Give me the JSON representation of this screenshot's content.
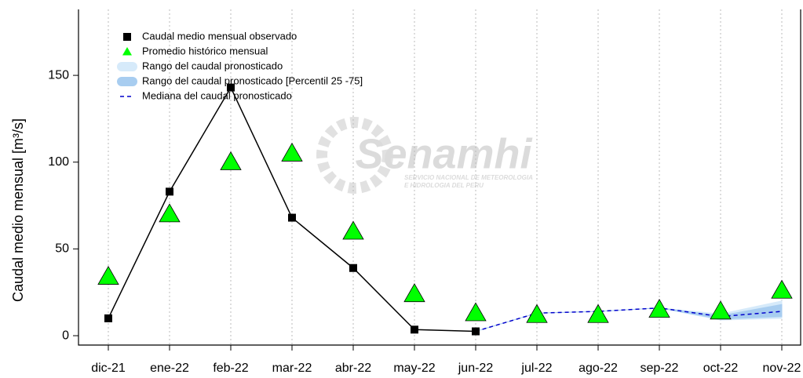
{
  "chart_data": {
    "type": "line",
    "ylabel": "Caudal medio mensual [m³/s]",
    "categories": [
      "dic-21",
      "ene-22",
      "feb-22",
      "mar-22",
      "abr-22",
      "may-22",
      "jun-22",
      "jul-22",
      "ago-22",
      "sep-22",
      "oct-22",
      "nov-22"
    ],
    "ylim": [
      -5.4,
      188
    ],
    "yticks": [
      0,
      50,
      100,
      150
    ],
    "grid": true,
    "legend": "upper left",
    "watermark": {
      "logo": "Senamhi",
      "line1": "SERVICIO NACIONAL DE METEOROLOGIA",
      "line2": "E HIDROLOGIA DEL PERU"
    },
    "series": [
      {
        "name": "Caudal medio mensual observado",
        "kind": "line-square",
        "color": "#000000",
        "values": [
          10,
          83,
          143,
          68,
          39,
          3.5,
          2.5,
          null,
          null,
          null,
          null,
          null
        ]
      },
      {
        "name": "Promedio histórico mensual",
        "kind": "triangle",
        "color": "#00ff00",
        "values": [
          34,
          70,
          100,
          105,
          60,
          24,
          13,
          12,
          12,
          15,
          14,
          26
        ]
      },
      {
        "name": "Rango del caudal pronosticado",
        "kind": "band",
        "color": "#d6eafa",
        "lower": [
          null,
          null,
          null,
          null,
          null,
          null,
          2.5,
          13,
          14,
          16,
          9,
          10
        ],
        "upper": [
          null,
          null,
          null,
          null,
          null,
          null,
          2.5,
          13,
          14,
          16,
          12.5,
          20
        ]
      },
      {
        "name": "Rango del caudal pronosticado [Percentil 25 -75]",
        "kind": "band",
        "color": "#a8cdf0",
        "lower": [
          null,
          null,
          null,
          null,
          null,
          null,
          2.5,
          13,
          14,
          16,
          9.5,
          11
        ],
        "upper": [
          null,
          null,
          null,
          null,
          null,
          null,
          2.5,
          13,
          14,
          16,
          11.5,
          18
        ]
      },
      {
        "name": "Mediana del caudal pronosticado",
        "kind": "dashed",
        "color": "#0000cc",
        "values": [
          null,
          null,
          null,
          null,
          null,
          null,
          2.5,
          13,
          14,
          16,
          11,
          14
        ]
      }
    ]
  }
}
